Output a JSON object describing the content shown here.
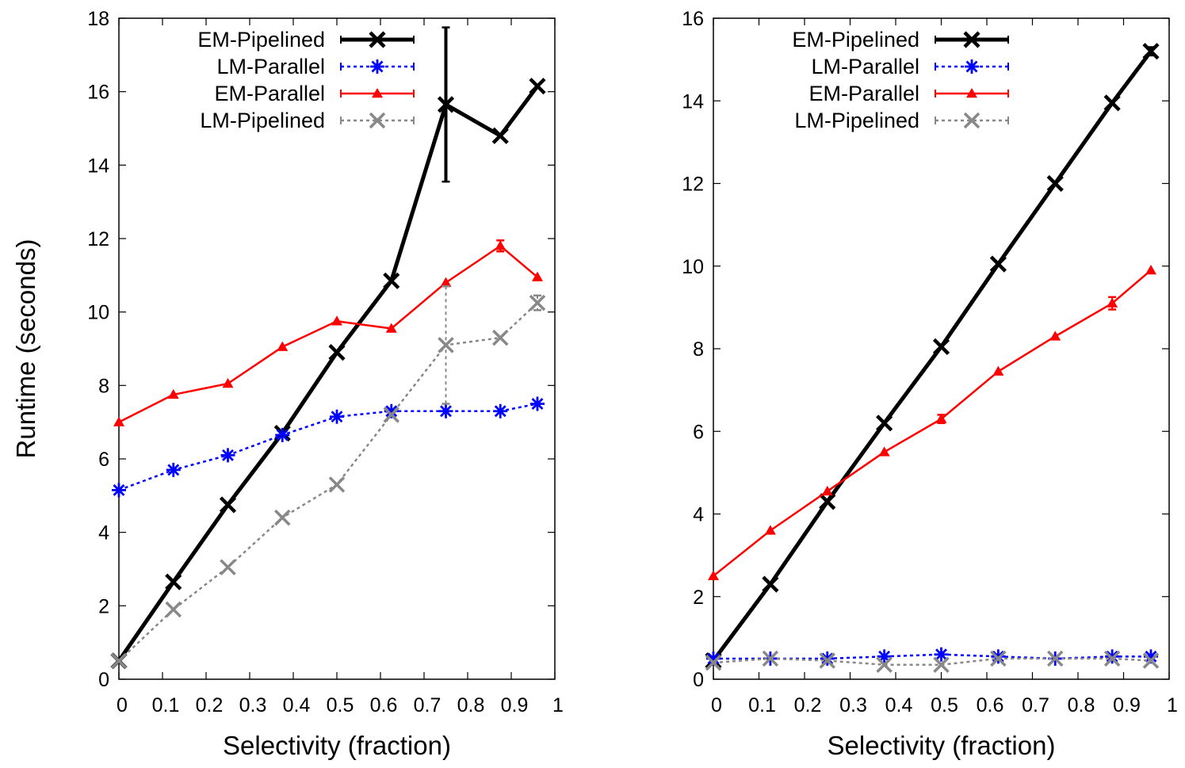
{
  "chart_data": [
    {
      "type": "line",
      "title": "",
      "xlabel": "Selectivity (fraction)",
      "ylabel": "Runtime (seconds)",
      "xlim": [
        0,
        1
      ],
      "ylim": [
        0,
        18
      ],
      "xticks": [
        0,
        0.1,
        0.2,
        0.3,
        0.4,
        0.5,
        0.6,
        0.7,
        0.8,
        0.9,
        1
      ],
      "xtick_labels": [
        "0",
        "0.1",
        "0.2",
        "0.3",
        "0.4",
        "0.5",
        "0.6",
        "0.7",
        "0.8",
        "0.9",
        "1"
      ],
      "yticks": [
        0,
        2,
        4,
        6,
        8,
        10,
        12,
        14,
        16,
        18
      ],
      "ytick_labels": [
        "0",
        "2",
        "4",
        "6",
        "8",
        "10",
        "12",
        "14",
        "16",
        "18"
      ],
      "grid": false,
      "legend_position": "top-left",
      "x": [
        0,
        0.125,
        0.25,
        0.375,
        0.5,
        0.625,
        0.75,
        0.875,
        0.96
      ],
      "series": [
        {
          "name": "EM-Pipelined",
          "color": "#000000",
          "line_style": "solid",
          "marker": "x",
          "values": [
            0.5,
            2.65,
            4.75,
            6.7,
            8.9,
            10.85,
            15.65,
            14.8,
            16.15
          ],
          "errors": [
            0,
            0,
            0,
            0,
            0,
            0,
            2.1,
            0,
            0
          ]
        },
        {
          "name": "LM-Parallel",
          "color": "#0000ff",
          "line_style": "dotted",
          "marker": "asterisk",
          "values": [
            5.15,
            5.7,
            6.1,
            6.65,
            7.15,
            7.3,
            7.3,
            7.3,
            7.5
          ],
          "errors": [
            0,
            0,
            0,
            0,
            0,
            0,
            0,
            0,
            0
          ]
        },
        {
          "name": "EM-Parallel",
          "color": "#ff0000",
          "line_style": "solid",
          "marker": "triangle",
          "values": [
            7.0,
            7.75,
            8.05,
            9.05,
            9.75,
            9.55,
            10.8,
            11.8,
            10.95
          ],
          "errors": [
            0,
            0,
            0,
            0,
            0,
            0,
            0,
            0.15,
            0
          ]
        },
        {
          "name": "LM-Pipelined",
          "color": "#888888",
          "line_style": "dotted",
          "marker": "x",
          "values": [
            0.5,
            1.9,
            3.05,
            4.4,
            5.3,
            7.2,
            9.1,
            9.3,
            10.25
          ],
          "errors": [
            0,
            0,
            0,
            0,
            0,
            0,
            1.6,
            0,
            0.2
          ]
        }
      ]
    },
    {
      "type": "line",
      "title": "",
      "xlabel": "Selectivity (fraction)",
      "ylabel": "",
      "xlim": [
        0,
        1
      ],
      "ylim": [
        0,
        16
      ],
      "xticks": [
        0,
        0.1,
        0.2,
        0.3,
        0.4,
        0.5,
        0.6,
        0.7,
        0.8,
        0.9,
        1
      ],
      "xtick_labels": [
        "0",
        "0.1",
        "0.2",
        "0.3",
        "0.4",
        "0.5",
        "0.6",
        "0.7",
        "0.8",
        "0.9",
        "1"
      ],
      "yticks": [
        0,
        2,
        4,
        6,
        8,
        10,
        12,
        14,
        16
      ],
      "ytick_labels": [
        "0",
        "2",
        "4",
        "6",
        "8",
        "10",
        "12",
        "14",
        "16"
      ],
      "grid": false,
      "legend_position": "top-left",
      "x": [
        0,
        0.125,
        0.25,
        0.375,
        0.5,
        0.625,
        0.75,
        0.875,
        0.96
      ],
      "series": [
        {
          "name": "EM-Pipelined",
          "color": "#000000",
          "line_style": "solid",
          "marker": "x",
          "values": [
            0.45,
            2.3,
            4.3,
            6.2,
            8.05,
            10.05,
            12.0,
            13.95,
            15.2
          ],
          "errors": [
            0,
            0,
            0,
            0,
            0,
            0,
            0,
            0,
            0.1
          ]
        },
        {
          "name": "LM-Parallel",
          "color": "#0000ff",
          "line_style": "dotted",
          "marker": "asterisk",
          "values": [
            0.5,
            0.5,
            0.5,
            0.55,
            0.6,
            0.55,
            0.5,
            0.55,
            0.55
          ],
          "errors": [
            0,
            0,
            0,
            0,
            0,
            0,
            0,
            0,
            0
          ]
        },
        {
          "name": "EM-Parallel",
          "color": "#ff0000",
          "line_style": "solid",
          "marker": "triangle",
          "values": [
            2.5,
            3.6,
            4.55,
            5.5,
            6.3,
            7.45,
            8.3,
            9.1,
            9.9
          ],
          "errors": [
            0,
            0,
            0,
            0,
            0.1,
            0,
            0,
            0.15,
            0
          ]
        },
        {
          "name": "LM-Pipelined",
          "color": "#888888",
          "line_style": "dotted",
          "marker": "x",
          "values": [
            0.4,
            0.5,
            0.45,
            0.35,
            0.35,
            0.5,
            0.5,
            0.5,
            0.45
          ],
          "errors": [
            0,
            0,
            0,
            0,
            0,
            0,
            0,
            0,
            0
          ]
        }
      ]
    }
  ]
}
